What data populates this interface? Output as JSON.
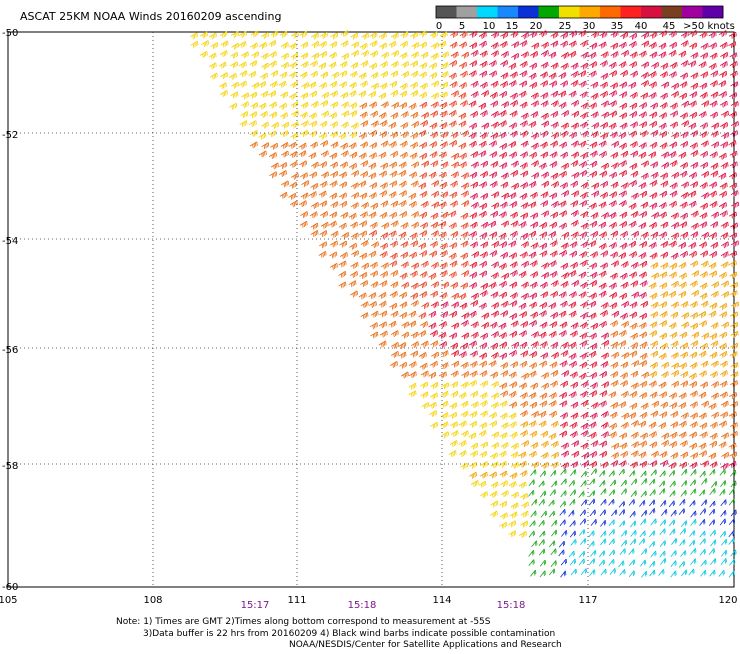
{
  "title": "ASCAT 25KM NOAA Winds 20160209 ascending",
  "legend": {
    "ticks": [
      "0",
      "5",
      "10",
      "15",
      "20",
      "25",
      "30",
      "35",
      "40",
      "45",
      ">50 knots"
    ],
    "colors": [
      "#555555",
      "#a0a0a0",
      "#00d8ff",
      "#1888ff",
      "#0a30d8",
      "#00a800",
      "#f0e000",
      "#ffa800",
      "#ff6a00",
      "#ff2020",
      "#d81040",
      "#784020",
      "#a000a0",
      "#6000a8"
    ]
  },
  "map": {
    "lat_labels": [
      "-50",
      "-52",
      "-54",
      "-56",
      "-58",
      "-60"
    ],
    "lon_labels": [
      "105",
      "108",
      "111",
      "114",
      "117",
      "120"
    ],
    "times": [
      "15:17",
      "15:18",
      "15:18"
    ],
    "grid": "dotted",
    "barb_colors": {
      "yellow": "#f5d200",
      "gold": "#f0a000",
      "orange": "#e86a10",
      "red_orange": "#e84020",
      "red": "#e01030",
      "crimson": "#d81050",
      "green": "#18a818",
      "blue": "#1030d8",
      "cyan": "#00c8e0"
    }
  },
  "notes": {
    "line1": "Note: 1) Times are GMT 2)Times along bottom correspond to measurement at -55S",
    "line2": "3)Data buffer is 22 hrs from 20160209 4) Black wind barbs indicate possible contamination",
    "line3": "NOAA/NESDIS/Center for Satellite Applications and Research"
  }
}
